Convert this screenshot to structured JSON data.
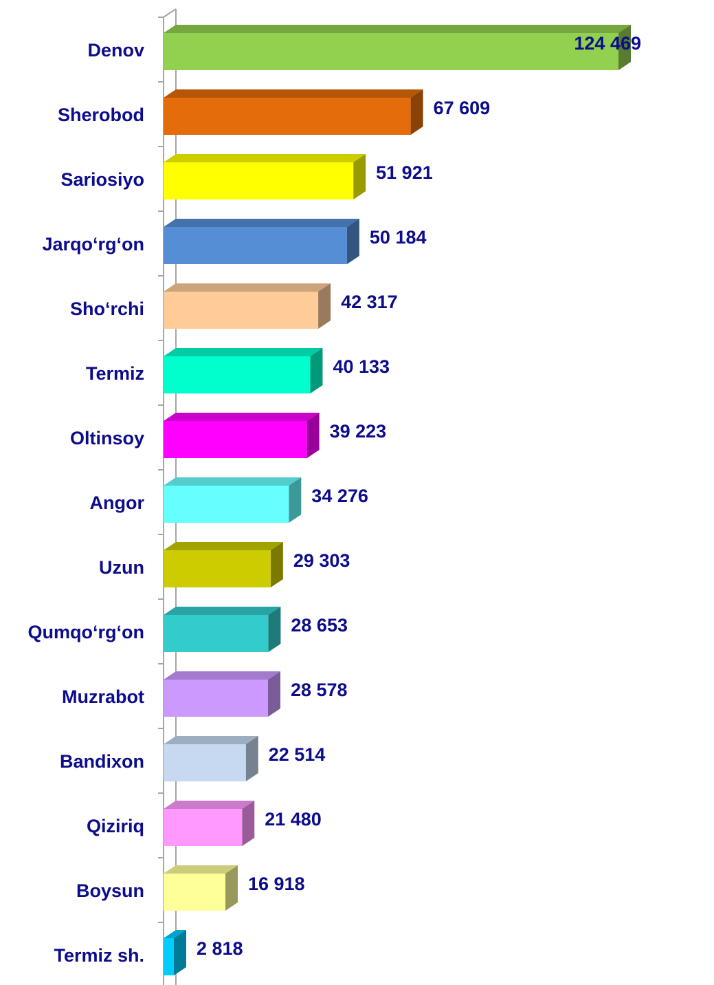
{
  "chart_data": {
    "type": "bar3d_horizontal",
    "categories": [
      "Denov",
      "Sherobod",
      "Sariosiyo",
      "Jarqo‘rg‘on",
      "Sho‘rchi",
      "Termiz",
      "Oltinsoy",
      "Angor",
      "Uzun",
      "Qumqo‘rg‘on",
      "Muzrabot",
      "Bandixon",
      "Qiziriq",
      "Boysun",
      "Termiz sh."
    ],
    "values": [
      124469,
      67609,
      51921,
      50184,
      42317,
      40133,
      39223,
      34276,
      29303,
      28653,
      28578,
      22514,
      21480,
      16918,
      2818
    ],
    "value_labels": [
      "124 469",
      "67 609",
      "51 921",
      "50 184",
      "42 317",
      "40 133",
      "39 223",
      "34 276",
      "29 303",
      "28 653",
      "28 578",
      "22 514",
      "21 480",
      "16 918",
      "2 818"
    ],
    "colors": [
      "#92d050",
      "#e46c0a",
      "#ffff00",
      "#558ed5",
      "#ffcc99",
      "#00ffcc",
      "#ff00ff",
      "#66ffff",
      "#cccc00",
      "#33cccc",
      "#cc99ff",
      "#c6d9f1",
      "#ff99ff",
      "#ffff99",
      "#00ccff"
    ]
  }
}
